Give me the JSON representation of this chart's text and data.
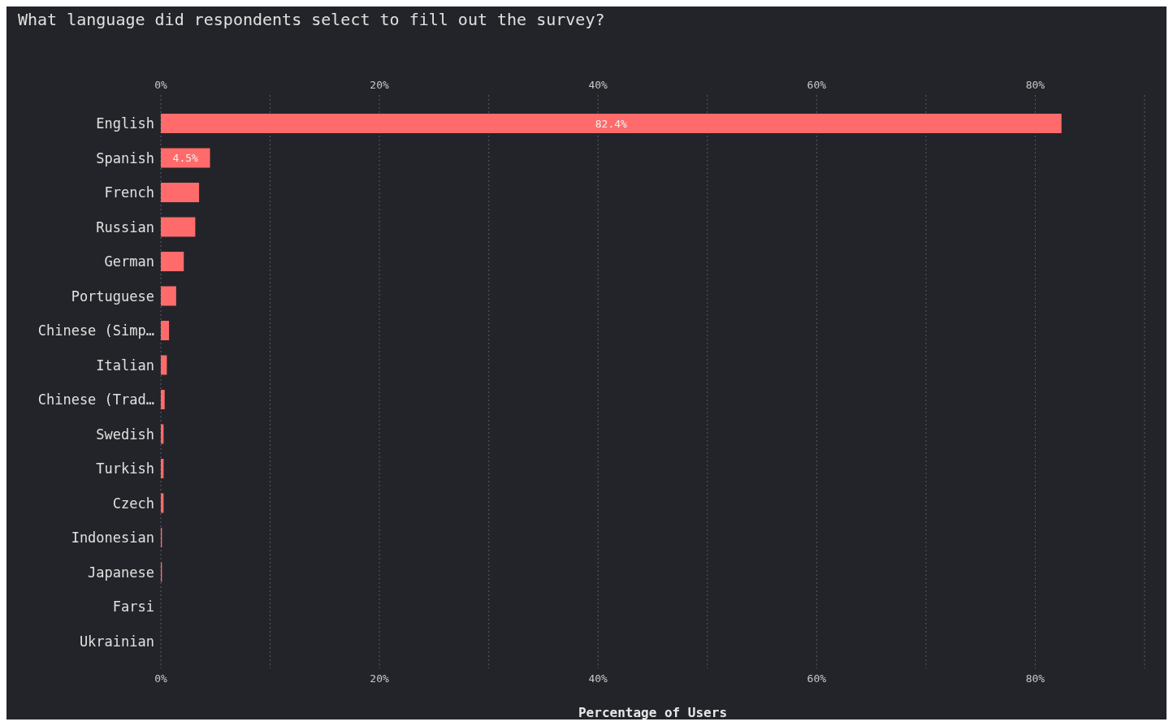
{
  "chart_data": {
    "type": "bar",
    "orientation": "horizontal",
    "title": "What language did respondents select to fill out the survey?",
    "xlabel": "Percentage of Users",
    "categories": [
      "English",
      "Spanish",
      "French",
      "Russian",
      "German",
      "Portuguese",
      "Chinese (Simp…",
      "Italian",
      "Chinese (Trad…",
      "Swedish",
      "Turkish",
      "Czech",
      "Indonesian",
      "Japanese",
      "Farsi",
      "Ukrainian"
    ],
    "values": [
      82.4,
      4.5,
      3.5,
      3.15,
      2.1,
      1.4,
      0.75,
      0.55,
      0.35,
      0.25,
      0.25,
      0.25,
      0.1,
      0.1,
      0,
      0
    ],
    "value_labels": [
      "82.4%",
      "4.5%",
      null,
      null,
      null,
      null,
      null,
      null,
      null,
      null,
      null,
      null,
      null,
      null,
      null,
      null
    ],
    "color": "#ff6b6b",
    "xlim": [
      0,
      90
    ],
    "xticks": [
      {
        "value": 0,
        "label": "0%"
      },
      {
        "value": 10,
        "label": null
      },
      {
        "value": 20,
        "label": "20%"
      },
      {
        "value": 30,
        "label": null
      },
      {
        "value": 40,
        "label": "40%"
      },
      {
        "value": 50,
        "label": null
      },
      {
        "value": 60,
        "label": "60%"
      },
      {
        "value": 70,
        "label": null
      },
      {
        "value": 80,
        "label": "80%"
      },
      {
        "value": 90,
        "label": null
      }
    ],
    "x2lim": [
      0,
      90
    ],
    "x2ticks": [
      {
        "value": 0,
        "label": "0%"
      },
      {
        "value": 10,
        "label": null
      },
      {
        "value": 20,
        "label": "20%"
      },
      {
        "value": 30,
        "label": null
      },
      {
        "value": 40,
        "label": "40%"
      },
      {
        "value": 50,
        "label": null
      },
      {
        "value": 60,
        "label": "60%"
      },
      {
        "value": 70,
        "label": null
      },
      {
        "value": 80,
        "label": "80%"
      },
      {
        "value": 90,
        "label": null
      }
    ],
    "grid": "x"
  }
}
